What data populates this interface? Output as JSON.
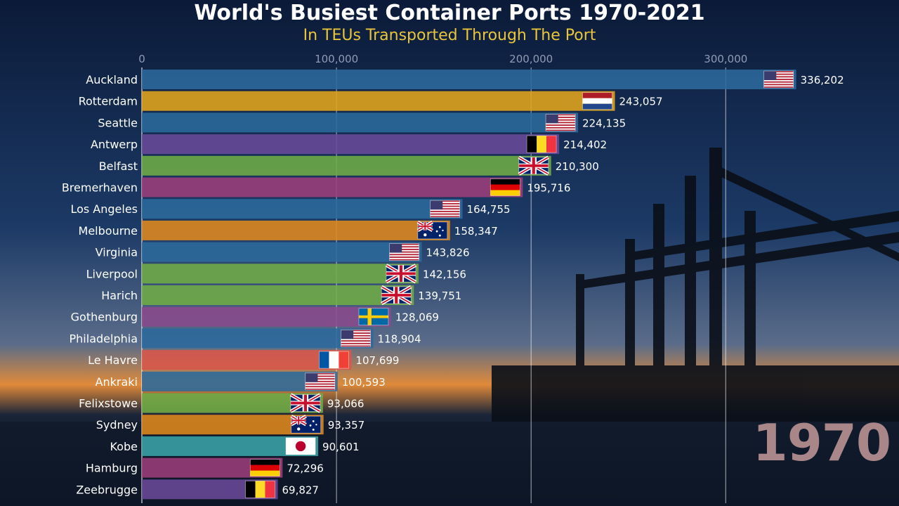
{
  "header": {
    "title": "World's Busiest Container Ports 1970-2021",
    "subtitle": "In TEUs Transported Through The Port"
  },
  "year_label": "1970",
  "chart_data": {
    "type": "bar",
    "orientation": "horizontal",
    "title": "World's Busiest Container Ports 1970-2021",
    "subtitle": "In TEUs Transported Through The Port",
    "xlim": [
      0,
      345000
    ],
    "x_ticks": [
      0,
      100000,
      200000,
      300000
    ],
    "x_tick_labels": [
      "0",
      "100,000",
      "200,000",
      "300,000"
    ],
    "grid": true,
    "categories": [
      "Auckland",
      "Rotterdam",
      "Seattle",
      "Antwerp",
      "Belfast",
      "Bremerhaven",
      "Los Angeles",
      "Melbourne",
      "Virginia",
      "Liverpool",
      "Harich",
      "Gothenburg",
      "Philadelphia",
      "Le Havre",
      "Ankraki",
      "Felixstowe",
      "Sydney",
      "Kobe",
      "Hamburg",
      "Zeebrugge"
    ],
    "values": [
      336202,
      243057,
      224135,
      214402,
      210300,
      195716,
      164755,
      158347,
      143826,
      142156,
      139751,
      128069,
      118904,
      107699,
      100593,
      93066,
      93357,
      90601,
      72296,
      69827
    ],
    "value_labels": [
      "336,202",
      "243,057",
      "224,135",
      "214,402",
      "210,300",
      "195,716",
      "164,755",
      "158,347",
      "143,826",
      "142,156",
      "139,751",
      "128,069",
      "118,904",
      "107,699",
      "100,593",
      "93,066",
      "93,357",
      "90,601",
      "72,296",
      "69,827"
    ],
    "countries": [
      "us",
      "nl",
      "us",
      "be",
      "gb",
      "de",
      "us",
      "au",
      "us",
      "gb",
      "gb",
      "se",
      "us",
      "fr",
      "us",
      "gb",
      "au",
      "jp",
      "de",
      "be"
    ],
    "country_colors": {
      "us": "#2b6a9c",
      "nl": "#e3a51c",
      "be": "#6a4a9a",
      "gb": "#6fac46",
      "de": "#9c3d7a",
      "au": "#e0891e",
      "se": "#8a4a8c",
      "fr": "#d9564a",
      "jp": "#3aa3a8"
    }
  }
}
